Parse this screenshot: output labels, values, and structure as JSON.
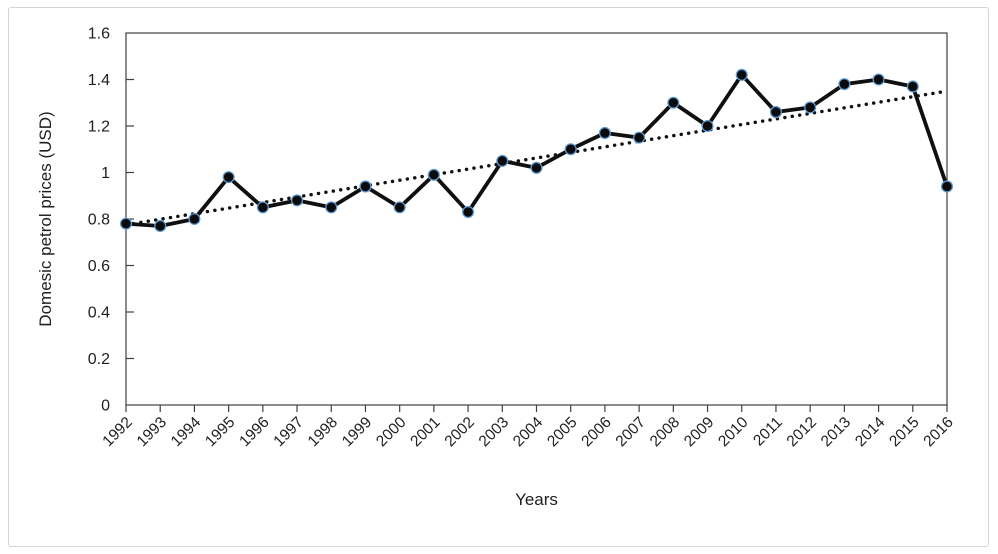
{
  "chart_data": {
    "type": "line",
    "title": "",
    "xlabel": "Years",
    "ylabel": "Domesic petrol prices (USD)",
    "categories": [
      "1992",
      "1993",
      "1994",
      "1995",
      "1996",
      "1997",
      "1998",
      "1999",
      "2000",
      "2001",
      "2002",
      "2003",
      "2004",
      "2005",
      "2006",
      "2007",
      "2008",
      "2009",
      "2010",
      "2011",
      "2012",
      "2013",
      "2014",
      "2015",
      "2016"
    ],
    "series": [
      {
        "values": [
          0.78,
          0.77,
          0.8,
          0.98,
          0.85,
          0.88,
          0.85,
          0.94,
          0.85,
          0.99,
          0.83,
          1.05,
          1.02,
          1.1,
          1.17,
          1.15,
          1.3,
          1.2,
          1.42,
          1.26,
          1.28,
          1.38,
          1.4,
          1.37,
          0.94
        ]
      }
    ],
    "trendline": {
      "type": "linear",
      "style": "dotted",
      "start_value": 0.775,
      "end_value": 1.35
    },
    "ylim": [
      0,
      1.6
    ],
    "yticks": [
      0,
      0.2,
      0.4,
      0.6,
      0.8,
      1.0,
      1.2,
      1.4,
      1.6
    ],
    "ytick_labels": [
      "0",
      "0.2",
      "0.4",
      "0.6",
      "0.8",
      "1",
      "1.2",
      "1.4",
      "1.6"
    ],
    "grid": false,
    "legend": "none",
    "marker": "circle",
    "colors": {
      "line": "#0f0f0f",
      "marker_fill": "#0b0b0b",
      "marker_border": "#5b9bd5",
      "trendline": "#111111",
      "axis": "#404040",
      "text": "#1f1f1f",
      "frame_border": "#d4d4d6"
    }
  }
}
